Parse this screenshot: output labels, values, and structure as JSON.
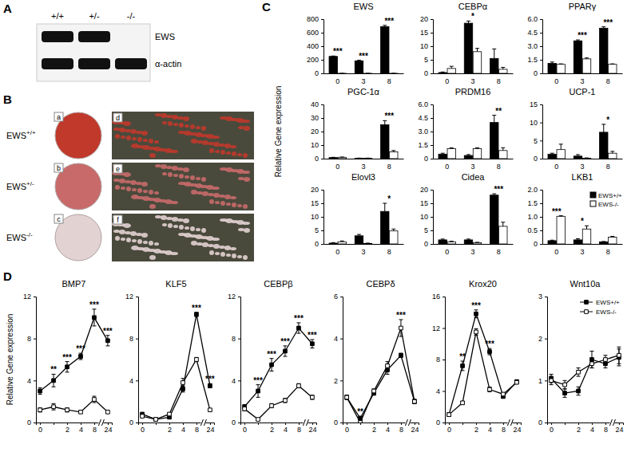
{
  "panel_labels": [
    "A",
    "B",
    "C",
    "D"
  ],
  "blot": {
    "lanes": [
      "+/+",
      "+/-",
      "-/-"
    ],
    "rows": [
      {
        "label": "EWS",
        "bands": [
          true,
          true,
          false
        ]
      },
      {
        "label": "α-actin",
        "bands": [
          true,
          true,
          true
        ]
      }
    ]
  },
  "staining": {
    "rows": [
      {
        "genotype": "EWS",
        "superscript": "+/+",
        "dish_label": "a",
        "image_label": "d",
        "color": "#c0392b"
      },
      {
        "genotype": "EWS",
        "superscript": "+/-",
        "dish_label": "b",
        "image_label": "e",
        "color": "#c86a6a"
      },
      {
        "genotype": "EWS",
        "superscript": "-/-",
        "dish_label": "c",
        "image_label": "f",
        "color": "#e2d2d2"
      }
    ]
  },
  "bar_y_label": "Relative Gene expression",
  "line_y_label": "Relative Gene expression",
  "chart_data": [
    {
      "type": "bar",
      "title": "EWS",
      "categories": [
        "0",
        "3",
        "8"
      ],
      "ylim": [
        0,
        800
      ],
      "yticks": [
        0,
        200,
        400,
        600,
        800
      ],
      "series": [
        {
          "name": "EWS+/+",
          "color": "#000000",
          "values": [
            250,
            185,
            690
          ],
          "errors": [
            6,
            8,
            18
          ]
        },
        {
          "name": "EWS-/-",
          "color": "#ffffff",
          "values": [
            0.5,
            0.5,
            0.5
          ],
          "errors": [
            0.2,
            0.2,
            0.2
          ]
        }
      ],
      "annotations": [
        "***",
        "***",
        "***"
      ]
    },
    {
      "type": "bar",
      "title": "CEBPα",
      "categories": [
        "0",
        "3",
        "8"
      ],
      "ylim": [
        0,
        20
      ],
      "yticks": [
        0,
        5,
        10,
        15,
        20
      ],
      "series": [
        {
          "name": "EWS+/+",
          "color": "#000000",
          "values": [
            0.3,
            18.5,
            5.5
          ],
          "errors": [
            0.2,
            0.8,
            3.5
          ]
        },
        {
          "name": "EWS-/-",
          "color": "#ffffff",
          "values": [
            1.8,
            8,
            1.5
          ],
          "errors": [
            0.8,
            1.2,
            0.7
          ]
        }
      ],
      "annotations": [
        null,
        "*",
        null
      ]
    },
    {
      "type": "bar",
      "title": "PPARγ",
      "categories": [
        "0",
        "3",
        "8"
      ],
      "ylim": [
        0,
        6
      ],
      "yticks": [
        0,
        1.5,
        {
          "value": 3,
          "label": "3.0"
        },
        4.5,
        {
          "value": 6,
          "label": "6.0"
        }
      ],
      "series": [
        {
          "name": "EWS+/+",
          "color": "#000000",
          "values": [
            1.1,
            3.6,
            5.0
          ],
          "errors": [
            0.15,
            0.1,
            0.15
          ]
        },
        {
          "name": "EWS-/-",
          "color": "#ffffff",
          "values": [
            1.0,
            1.6,
            1.0
          ],
          "errors": [
            0.05,
            0.1,
            0.05
          ]
        }
      ],
      "annotations": [
        null,
        "***",
        "***"
      ]
    },
    {
      "type": "bar",
      "title": "PGC-1α",
      "categories": [
        "0",
        "3",
        "8"
      ],
      "ylim": [
        0,
        40
      ],
      "yticks": [
        0,
        10,
        20,
        30,
        40
      ],
      "series": [
        {
          "name": "EWS+/+",
          "color": "#000000",
          "values": [
            0.8,
            0.3,
            25
          ],
          "errors": [
            0.2,
            0.1,
            3
          ]
        },
        {
          "name": "EWS-/-",
          "color": "#ffffff",
          "values": [
            1,
            0.3,
            5
          ],
          "errors": [
            0.2,
            0.1,
            1
          ]
        }
      ],
      "annotations": [
        null,
        null,
        "***"
      ]
    },
    {
      "type": "bar",
      "title": "PRDM16",
      "categories": [
        "0",
        "3",
        "8"
      ],
      "ylim": [
        0,
        6
      ],
      "yticks": [
        0,
        1.5,
        {
          "value": 3,
          "label": "3.0"
        },
        4.5,
        {
          "value": 6,
          "label": "6.0"
        }
      ],
      "series": [
        {
          "name": "EWS+/+",
          "color": "#000000",
          "values": [
            0.5,
            0.35,
            4
          ],
          "errors": [
            0.1,
            0.1,
            0.8
          ]
        },
        {
          "name": "EWS-/-",
          "color": "#ffffff",
          "values": [
            1.1,
            1.1,
            0.9
          ],
          "errors": [
            0.1,
            0.1,
            0.3
          ]
        }
      ],
      "annotations": [
        null,
        null,
        "**"
      ]
    },
    {
      "type": "bar",
      "title": "UCP-1",
      "categories": [
        "0",
        "3",
        "8"
      ],
      "ylim": [
        0,
        15
      ],
      "yticks": [
        0,
        5,
        10,
        15
      ],
      "series": [
        {
          "name": "EWS+/+",
          "color": "#000000",
          "values": [
            1.2,
            0.7,
            7.3
          ],
          "errors": [
            0.3,
            0.4,
            2.2
          ]
        },
        {
          "name": "EWS-/-",
          "color": "#ffffff",
          "values": [
            2.5,
            0.1,
            1.5
          ],
          "errors": [
            1.5,
            0.1,
            0.5
          ]
        }
      ],
      "annotations": [
        null,
        null,
        "*"
      ]
    },
    {
      "type": "bar",
      "title": "Elovl3",
      "categories": [
        "0",
        "3",
        "8"
      ],
      "ylim": [
        0,
        20
      ],
      "yticks": [
        0,
        5,
        10,
        15,
        20
      ],
      "series": [
        {
          "name": "EWS+/+",
          "color": "#000000",
          "values": [
            0.3,
            3,
            12
          ],
          "errors": [
            0.2,
            0.5,
            3
          ]
        },
        {
          "name": "EWS-/-",
          "color": "#ffffff",
          "values": [
            0.8,
            0.2,
            4.8
          ],
          "errors": [
            0.3,
            0.1,
            0.7
          ]
        }
      ],
      "annotations": [
        null,
        null,
        "*"
      ]
    },
    {
      "type": "bar",
      "title": "Cidea",
      "categories": [
        "0",
        "3",
        "8"
      ],
      "ylim": [
        0,
        20
      ],
      "yticks": [
        0,
        5,
        10,
        15,
        20
      ],
      "series": [
        {
          "name": "EWS+/+",
          "color": "#000000",
          "values": [
            1.5,
            1.5,
            18
          ],
          "errors": [
            0.3,
            0.3,
            0.5
          ]
        },
        {
          "name": "EWS-/-",
          "color": "#ffffff",
          "values": [
            0.8,
            0.5,
            6.5
          ],
          "errors": [
            0.2,
            0.1,
            1.5
          ]
        }
      ],
      "annotations": [
        null,
        null,
        "***"
      ]
    },
    {
      "type": "bar",
      "title": "LKB1",
      "categories": [
        "0",
        "3",
        "8"
      ],
      "ylim": [
        0,
        2
      ],
      "yticks": [
        0,
        0.5,
        {
          "value": 1,
          "label": "1.0"
        },
        1.5,
        {
          "value": 2,
          "label": "2.0"
        }
      ],
      "series": [
        {
          "name": "EWS+/+",
          "color": "#000000",
          "values": [
            0.12,
            0.15,
            0.08
          ],
          "errors": [
            0.02,
            0.04,
            0.01
          ]
        },
        {
          "name": "EWS-/-",
          "color": "#ffffff",
          "values": [
            1.02,
            0.55,
            0.25
          ],
          "errors": [
            0.02,
            0.12,
            0.03
          ]
        }
      ],
      "annotations": [
        "***",
        "*",
        null
      ],
      "legend": "upper right"
    },
    {
      "type": "line",
      "title": "BMP7",
      "categories": [
        "0",
        null,
        "2",
        "4",
        "8",
        "24"
      ],
      "ylim": [
        0,
        12
      ],
      "yticks": [
        0,
        4,
        8,
        12
      ],
      "series": [
        {
          "name": "EWS+/+",
          "color": "#000000",
          "marker": "square",
          "values": [
            3,
            4,
            5.3,
            6.3,
            10,
            7.8
          ],
          "errors": [
            0.3,
            0.6,
            0.5,
            0.3,
            0.8,
            0.5
          ]
        },
        {
          "name": "EWS-/-",
          "color": "#000000",
          "marker": "open-square",
          "values": [
            1.2,
            1.5,
            1.2,
            1,
            2.2,
            1
          ],
          "errors": [
            0.2,
            0.3,
            0.2,
            0.1,
            0.3,
            0.1
          ]
        }
      ],
      "annotations": [
        null,
        "**",
        "***",
        "***",
        "***",
        "***"
      ]
    },
    {
      "type": "line",
      "title": "KLF5",
      "categories": [
        "0",
        null,
        "2",
        "4",
        "8",
        "24"
      ],
      "ylim": [
        0,
        12
      ],
      "yticks": [
        0,
        4,
        8,
        12
      ],
      "series": [
        {
          "name": "EWS+/+",
          "color": "#000000",
          "marker": "square",
          "values": [
            0.8,
            0.3,
            0.5,
            3.2,
            10.3,
            3.5
          ],
          "errors": [
            0.1,
            0.1,
            0.1,
            0.3,
            0.2,
            0.2
          ]
        },
        {
          "name": "EWS-/-",
          "color": "#000000",
          "marker": "open-square",
          "values": [
            0.6,
            0.3,
            0.8,
            3.8,
            6,
            1.2
          ],
          "errors": [
            0.1,
            0.1,
            0.1,
            0.4,
            0.2,
            0.1
          ]
        }
      ],
      "annotations": [
        null,
        null,
        null,
        null,
        "***",
        "***"
      ]
    },
    {
      "type": "line",
      "title": "CEBPβ",
      "categories": [
        "0",
        null,
        "2",
        "4",
        "8",
        "24"
      ],
      "ylim": [
        0,
        12
      ],
      "yticks": [
        0,
        4,
        8,
        12
      ],
      "series": [
        {
          "name": "EWS+/+",
          "color": "#000000",
          "marker": "square",
          "values": [
            1.5,
            3,
            5.5,
            6.8,
            9,
            7.5
          ],
          "errors": [
            0.2,
            0.6,
            0.6,
            0.5,
            0.5,
            0.4
          ]
        },
        {
          "name": "EWS-/-",
          "color": "#000000",
          "marker": "open-square",
          "values": [
            1.3,
            0.3,
            1.6,
            2.1,
            3.5,
            2.4
          ],
          "errors": [
            0.2,
            0.1,
            0.2,
            0.2,
            0.2,
            0.2
          ]
        }
      ],
      "annotations": [
        null,
        "***",
        "***",
        "***",
        "***",
        "***"
      ]
    },
    {
      "type": "line",
      "title": "CEBPδ",
      "categories": [
        "0",
        null,
        "2",
        "4",
        "8",
        "24"
      ],
      "ylim": [
        0,
        6
      ],
      "yticks": [
        0,
        2,
        4,
        6
      ],
      "series": [
        {
          "name": "EWS+/+",
          "color": "#000000",
          "marker": "square",
          "values": [
            1.2,
            0.2,
            1.4,
            2.5,
            3.2,
            1.0
          ],
          "errors": [
            0.1,
            0.1,
            0.1,
            0.2,
            0.1,
            0.1
          ]
        },
        {
          "name": "EWS-/-",
          "color": "#000000",
          "marker": "open-square",
          "values": [
            1.2,
            0,
            1.5,
            2.7,
            4.5,
            1.0
          ],
          "errors": [
            0.1,
            0.05,
            0.1,
            0.2,
            0.4,
            0.1
          ]
        }
      ],
      "annotations": [
        null,
        "**",
        null,
        null,
        "***",
        null
      ]
    },
    {
      "type": "line",
      "title": "Krox20",
      "categories": [
        "0",
        null,
        "2",
        "4",
        "8",
        "24"
      ],
      "ylim": [
        0,
        16
      ],
      "yticks": [
        0,
        4,
        8,
        12,
        16
      ],
      "series": [
        {
          "name": "EWS+/+",
          "color": "#000000",
          "marker": "square",
          "values": [
            1,
            7.2,
            13.8,
            9,
            3.3,
            5.2
          ],
          "errors": [
            0.1,
            0.6,
            0.5,
            0.4,
            0.2,
            0.2
          ]
        },
        {
          "name": "EWS-/-",
          "color": "#000000",
          "marker": "open-square",
          "values": [
            1,
            2.5,
            11.5,
            4.2,
            3.6,
            5.1
          ],
          "errors": [
            0.1,
            0.2,
            0.4,
            0.3,
            0.2,
            0.2
          ]
        }
      ],
      "annotations": [
        null,
        "**",
        "***",
        "***",
        null,
        null
      ]
    },
    {
      "type": "line",
      "title": "Wnt10a",
      "categories": [
        "0",
        null,
        "2",
        "4",
        "8",
        "24"
      ],
      "ylim": [
        0,
        3
      ],
      "yticks": [
        0,
        1,
        2,
        3
      ],
      "series": [
        {
          "name": "EWS+/+",
          "color": "#000000",
          "marker": "square",
          "values": [
            1.05,
            0.7,
            0.75,
            1.5,
            1.4,
            1.55
          ],
          "errors": [
            0.1,
            0.1,
            0.1,
            0.2,
            0.1,
            0.2
          ]
        },
        {
          "name": "EWS-/-",
          "color": "#000000",
          "marker": "open-square",
          "values": [
            1,
            0.9,
            1.2,
            1.4,
            1.5,
            1.6
          ],
          "errors": [
            0.1,
            0.1,
            0.1,
            0.1,
            0.1,
            0.2
          ]
        }
      ],
      "legend": "upper right"
    }
  ]
}
